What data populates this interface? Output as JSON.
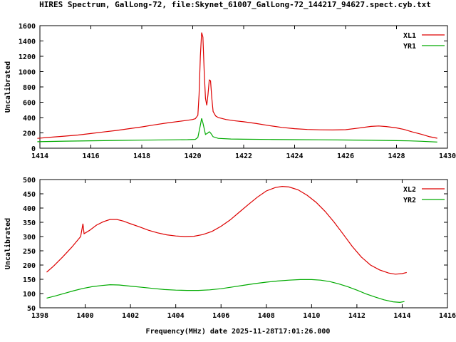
{
  "title": "HIRES Spectrum, GalLong-72, file:Skynet_61007_GalLong-72_144217_94627.spect.cyb.txt",
  "xlabel": "Frequency(MHz) date 2025-11-28T17:01:26.000",
  "colors": {
    "red": "#dd0000",
    "green": "#00aa00",
    "axis": "#000000",
    "background": "#ffffff"
  },
  "chart_data": [
    {
      "type": "line",
      "panel": "top",
      "ylabel": "Uncalibrated",
      "xlim": [
        1414,
        1430
      ],
      "ylim": [
        0,
        1600
      ],
      "xtick_step": 2,
      "ytick_step": 200,
      "grid": false,
      "legend_position": "top-right",
      "series": [
        {
          "name": "XL1",
          "color": "#dd0000",
          "points": [
            [
              1413.9,
              128
            ],
            [
              1414.5,
              145
            ],
            [
              1415,
              158
            ],
            [
              1415.5,
              172
            ],
            [
              1416,
              192
            ],
            [
              1416.5,
              212
            ],
            [
              1417,
              232
            ],
            [
              1417.5,
              255
            ],
            [
              1418,
              278
            ],
            [
              1418.5,
              305
            ],
            [
              1419,
              330
            ],
            [
              1419.5,
              352
            ],
            [
              1419.8,
              365
            ],
            [
              1420.0,
              375
            ],
            [
              1420.1,
              385
            ],
            [
              1420.2,
              430
            ],
            [
              1420.25,
              700
            ],
            [
              1420.3,
              1200
            ],
            [
              1420.35,
              1510
            ],
            [
              1420.4,
              1450
            ],
            [
              1420.45,
              1000
            ],
            [
              1420.5,
              650
            ],
            [
              1420.55,
              560
            ],
            [
              1420.6,
              700
            ],
            [
              1420.65,
              890
            ],
            [
              1420.7,
              880
            ],
            [
              1420.75,
              650
            ],
            [
              1420.8,
              480
            ],
            [
              1420.9,
              420
            ],
            [
              1421,
              400
            ],
            [
              1421.3,
              375
            ],
            [
              1421.6,
              360
            ],
            [
              1422,
              345
            ],
            [
              1422.5,
              322
            ],
            [
              1423,
              295
            ],
            [
              1423.5,
              272
            ],
            [
              1424,
              255
            ],
            [
              1424.5,
              245
            ],
            [
              1425,
              240
            ],
            [
              1425.5,
              238
            ],
            [
              1426,
              242
            ],
            [
              1426.5,
              262
            ],
            [
              1427,
              285
            ],
            [
              1427.3,
              290
            ],
            [
              1427.6,
              283
            ],
            [
              1428,
              265
            ],
            [
              1428.3,
              245
            ],
            [
              1428.6,
              215
            ],
            [
              1429,
              180
            ],
            [
              1429.3,
              150
            ],
            [
              1429.6,
              130
            ]
          ]
        },
        {
          "name": "YR1",
          "color": "#00aa00",
          "points": [
            [
              1413.9,
              85
            ],
            [
              1415,
              92
            ],
            [
              1416,
              97
            ],
            [
              1417,
              101
            ],
            [
              1418,
              105
            ],
            [
              1419,
              109
            ],
            [
              1419.8,
              112
            ],
            [
              1420.1,
              115
            ],
            [
              1420.2,
              140
            ],
            [
              1420.3,
              300
            ],
            [
              1420.35,
              390
            ],
            [
              1420.4,
              330
            ],
            [
              1420.5,
              180
            ],
            [
              1420.6,
              200
            ],
            [
              1420.65,
              215
            ],
            [
              1420.7,
              200
            ],
            [
              1420.8,
              150
            ],
            [
              1421,
              128
            ],
            [
              1421.5,
              120
            ],
            [
              1422,
              117
            ],
            [
              1423,
              114
            ],
            [
              1424,
              112
            ],
            [
              1425,
              110
            ],
            [
              1426,
              107
            ],
            [
              1427,
              103
            ],
            [
              1428,
              99
            ],
            [
              1428.5,
              96
            ],
            [
              1429,
              90
            ],
            [
              1429.6,
              80
            ]
          ]
        }
      ]
    },
    {
      "type": "line",
      "panel": "bottom",
      "ylabel": "Uncalibrated",
      "xlim": [
        1398,
        1416
      ],
      "ylim": [
        50,
        500
      ],
      "xtick_step": 2,
      "ytick_step": 50,
      "grid": false,
      "legend_position": "top-right",
      "series": [
        {
          "name": "XL2",
          "color": "#dd0000",
          "points": [
            [
              1398.3,
              175
            ],
            [
              1398.6,
              196
            ],
            [
              1399,
              228
            ],
            [
              1399.4,
              262
            ],
            [
              1399.8,
              300
            ],
            [
              1399.9,
              345
            ],
            [
              1399.95,
              310
            ],
            [
              1400.2,
              322
            ],
            [
              1400.5,
              340
            ],
            [
              1400.8,
              352
            ],
            [
              1401.1,
              360
            ],
            [
              1401.4,
              360
            ],
            [
              1401.7,
              354
            ],
            [
              1402,
              345
            ],
            [
              1402.4,
              334
            ],
            [
              1402.8,
              322
            ],
            [
              1403.2,
              313
            ],
            [
              1403.6,
              306
            ],
            [
              1404,
              302
            ],
            [
              1404.4,
              300
            ],
            [
              1404.8,
              301
            ],
            [
              1405.2,
              307
            ],
            [
              1405.6,
              318
            ],
            [
              1406,
              336
            ],
            [
              1406.4,
              358
            ],
            [
              1406.8,
              385
            ],
            [
              1407.2,
              412
            ],
            [
              1407.6,
              438
            ],
            [
              1408,
              460
            ],
            [
              1408.4,
              472
            ],
            [
              1408.7,
              476
            ],
            [
              1409,
              474
            ],
            [
              1409.4,
              464
            ],
            [
              1409.8,
              445
            ],
            [
              1410.2,
              420
            ],
            [
              1410.6,
              388
            ],
            [
              1411,
              350
            ],
            [
              1411.4,
              308
            ],
            [
              1411.8,
              265
            ],
            [
              1412.2,
              228
            ],
            [
              1412.6,
              200
            ],
            [
              1413,
              183
            ],
            [
              1413.4,
              172
            ],
            [
              1413.7,
              168
            ],
            [
              1414,
              170
            ],
            [
              1414.2,
              174
            ]
          ]
        },
        {
          "name": "YR2",
          "color": "#00aa00",
          "points": [
            [
              1398.3,
              84
            ],
            [
              1398.7,
              92
            ],
            [
              1399.1,
              101
            ],
            [
              1399.5,
              110
            ],
            [
              1399.9,
              118
            ],
            [
              1400.3,
              124
            ],
            [
              1400.7,
              128
            ],
            [
              1401.1,
              131
            ],
            [
              1401.5,
              130
            ],
            [
              1402,
              126
            ],
            [
              1402.5,
              122
            ],
            [
              1403,
              118
            ],
            [
              1403.5,
              114
            ],
            [
              1404,
              112
            ],
            [
              1404.5,
              111
            ],
            [
              1405,
              111
            ],
            [
              1405.5,
              113
            ],
            [
              1406,
              117
            ],
            [
              1406.5,
              123
            ],
            [
              1407,
              129
            ],
            [
              1407.5,
              135
            ],
            [
              1408,
              140
            ],
            [
              1408.5,
              144
            ],
            [
              1409,
              147
            ],
            [
              1409.5,
              149
            ],
            [
              1410,
              149
            ],
            [
              1410.4,
              147
            ],
            [
              1410.8,
              142
            ],
            [
              1411.2,
              134
            ],
            [
              1411.6,
              124
            ],
            [
              1412,
              112
            ],
            [
              1412.4,
              99
            ],
            [
              1412.8,
              88
            ],
            [
              1413.2,
              78
            ],
            [
              1413.6,
              71
            ],
            [
              1413.9,
              69
            ],
            [
              1414.1,
              72
            ]
          ]
        }
      ]
    }
  ]
}
